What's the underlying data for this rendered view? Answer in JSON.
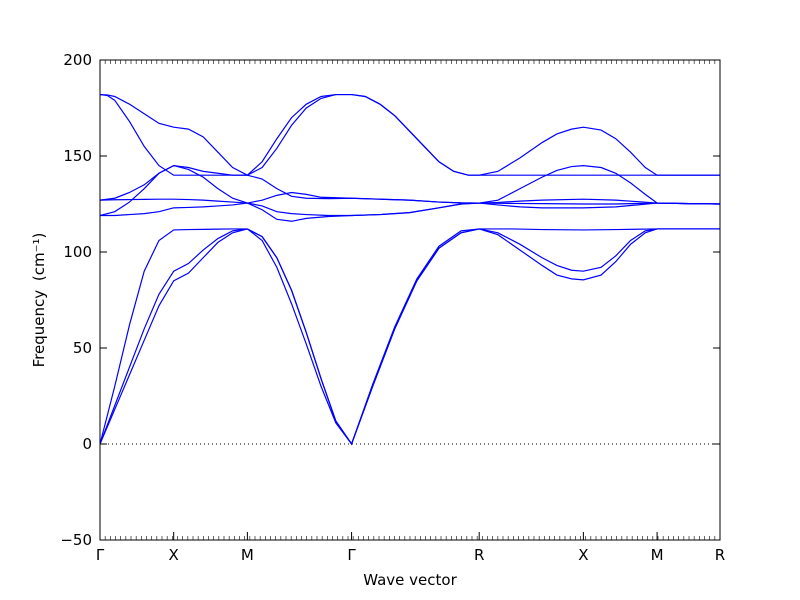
{
  "chart_data": {
    "type": "line",
    "xlabel": "Wave vector",
    "ylabel": "Frequency",
    "ylabel_unit": "(cm⁻¹)",
    "ylim": [
      -50,
      200
    ],
    "y_ticks": [
      -50,
      0,
      50,
      100,
      150,
      200
    ],
    "y_tick_labels": [
      "−50",
      "0",
      "50",
      "100",
      "150",
      "200"
    ],
    "grid": false,
    "zero_reference_line": "dotted",
    "line_color": "#0000ff",
    "path_points": [
      {
        "label": "Γ",
        "x": 0.0
      },
      {
        "label": "X",
        "x": 0.5
      },
      {
        "label": "M",
        "x": 1.0
      },
      {
        "label": "Γ",
        "x": 1.707
      },
      {
        "label": "R",
        "x": 2.573
      },
      {
        "label": "X",
        "x": 3.28
      },
      {
        "label": "M",
        "x": 3.78
      },
      {
        "label": "R",
        "x": 4.207
      }
    ],
    "series": [
      {
        "values": [
          [
            0.0,
            0
          ],
          [
            0.1,
            18
          ],
          [
            0.2,
            36
          ],
          [
            0.3,
            54
          ],
          [
            0.4,
            72
          ],
          [
            0.5,
            85
          ],
          [
            0.6,
            89
          ],
          [
            0.7,
            97
          ],
          [
            0.8,
            105
          ],
          [
            0.9,
            110
          ],
          [
            1.0,
            112
          ],
          [
            1.1,
            108
          ],
          [
            1.2,
            97
          ],
          [
            1.3,
            80
          ],
          [
            1.4,
            58
          ],
          [
            1.5,
            34
          ],
          [
            1.6,
            12
          ],
          [
            1.707,
            0
          ],
          [
            1.85,
            30
          ],
          [
            2.0,
            60
          ],
          [
            2.15,
            85
          ],
          [
            2.3,
            102
          ],
          [
            2.45,
            110
          ],
          [
            2.573,
            112
          ],
          [
            2.7,
            109
          ],
          [
            2.85,
            101
          ],
          [
            3.0,
            93
          ],
          [
            3.1,
            88
          ],
          [
            3.2,
            86
          ],
          [
            3.28,
            85.5
          ],
          [
            3.4,
            88
          ],
          [
            3.5,
            95
          ],
          [
            3.6,
            104
          ],
          [
            3.7,
            110
          ],
          [
            3.78,
            112
          ],
          [
            4.0,
            112
          ],
          [
            4.207,
            112
          ]
        ]
      },
      {
        "values": [
          [
            0.0,
            0
          ],
          [
            0.1,
            20
          ],
          [
            0.2,
            40
          ],
          [
            0.3,
            60
          ],
          [
            0.4,
            78
          ],
          [
            0.5,
            90
          ],
          [
            0.6,
            94
          ],
          [
            0.7,
            101
          ],
          [
            0.8,
            107
          ],
          [
            0.9,
            111
          ],
          [
            1.0,
            112
          ],
          [
            1.1,
            106
          ],
          [
            1.2,
            92
          ],
          [
            1.3,
            73
          ],
          [
            1.4,
            52
          ],
          [
            1.5,
            30
          ],
          [
            1.6,
            11
          ],
          [
            1.707,
            0
          ],
          [
            1.85,
            31
          ],
          [
            2.0,
            61
          ],
          [
            2.15,
            86
          ],
          [
            2.3,
            103
          ],
          [
            2.45,
            111
          ],
          [
            2.573,
            112
          ],
          [
            2.7,
            110
          ],
          [
            2.85,
            104
          ],
          [
            3.0,
            97
          ],
          [
            3.1,
            93
          ],
          [
            3.2,
            90.5
          ],
          [
            3.28,
            90
          ],
          [
            3.4,
            92
          ],
          [
            3.5,
            98
          ],
          [
            3.6,
            106
          ],
          [
            3.7,
            111
          ],
          [
            3.78,
            112
          ],
          [
            4.0,
            112
          ],
          [
            4.207,
            112
          ]
        ]
      },
      {
        "values": [
          [
            0.0,
            0
          ],
          [
            0.1,
            30
          ],
          [
            0.2,
            62
          ],
          [
            0.3,
            90
          ],
          [
            0.4,
            106
          ],
          [
            0.5,
            111.5
          ],
          [
            0.6,
            111.7
          ],
          [
            0.7,
            111.8
          ],
          [
            0.8,
            111.9
          ],
          [
            0.9,
            112
          ],
          [
            1.0,
            112
          ],
          [
            1.1,
            108
          ],
          [
            1.2,
            97
          ],
          [
            1.3,
            80
          ],
          [
            1.4,
            58
          ],
          [
            1.5,
            34
          ],
          [
            1.6,
            12
          ],
          [
            1.707,
            0
          ],
          [
            1.85,
            30
          ],
          [
            2.0,
            60
          ],
          [
            2.15,
            85
          ],
          [
            2.3,
            102
          ],
          [
            2.45,
            110
          ],
          [
            2.573,
            112
          ],
          [
            2.8,
            112
          ],
          [
            3.0,
            111.7
          ],
          [
            3.28,
            111.5
          ],
          [
            3.5,
            111.7
          ],
          [
            3.78,
            112
          ],
          [
            4.0,
            112
          ],
          [
            4.207,
            112
          ]
        ]
      },
      {
        "values": [
          [
            0.0,
            119
          ],
          [
            0.1,
            119
          ],
          [
            0.2,
            119.5
          ],
          [
            0.3,
            120
          ],
          [
            0.4,
            121
          ],
          [
            0.5,
            123
          ],
          [
            0.6,
            123.2
          ],
          [
            0.7,
            123.5
          ],
          [
            0.8,
            124
          ],
          [
            0.9,
            124.5
          ],
          [
            1.0,
            125.5
          ],
          [
            1.1,
            124
          ],
          [
            1.2,
            121
          ],
          [
            1.3,
            120
          ],
          [
            1.4,
            119.5
          ],
          [
            1.55,
            119
          ],
          [
            1.707,
            119
          ],
          [
            1.9,
            119.5
          ],
          [
            2.1,
            120.5
          ],
          [
            2.3,
            123
          ],
          [
            2.45,
            125
          ],
          [
            2.573,
            125.5
          ],
          [
            2.8,
            125.3
          ],
          [
            3.0,
            125.2
          ],
          [
            3.28,
            125
          ],
          [
            3.5,
            125
          ],
          [
            3.78,
            125.5
          ],
          [
            4.0,
            125.2
          ],
          [
            4.207,
            125
          ]
        ]
      },
      {
        "values": [
          [
            0.0,
            119
          ],
          [
            0.1,
            121
          ],
          [
            0.2,
            126
          ],
          [
            0.3,
            133
          ],
          [
            0.4,
            141
          ],
          [
            0.5,
            145
          ],
          [
            0.6,
            143
          ],
          [
            0.7,
            139
          ],
          [
            0.8,
            133
          ],
          [
            0.9,
            128
          ],
          [
            1.0,
            125.5
          ],
          [
            1.1,
            122
          ],
          [
            1.2,
            117
          ],
          [
            1.3,
            116
          ],
          [
            1.4,
            117.5
          ],
          [
            1.55,
            118.5
          ],
          [
            1.707,
            119
          ],
          [
            1.9,
            119.5
          ],
          [
            2.1,
            120.5
          ],
          [
            2.3,
            123
          ],
          [
            2.45,
            125
          ],
          [
            2.573,
            125.5
          ],
          [
            2.7,
            125.8
          ],
          [
            2.85,
            126.5
          ],
          [
            3.0,
            127
          ],
          [
            3.28,
            127.5
          ],
          [
            3.5,
            127
          ],
          [
            3.78,
            125.5
          ],
          [
            4.0,
            125.2
          ],
          [
            4.207,
            125
          ]
        ]
      },
      {
        "values": [
          [
            0.0,
            127
          ],
          [
            0.1,
            127.2
          ],
          [
            0.2,
            127.3
          ],
          [
            0.3,
            127.4
          ],
          [
            0.4,
            127.5
          ],
          [
            0.5,
            127.5
          ],
          [
            0.6,
            127.3
          ],
          [
            0.7,
            127
          ],
          [
            0.8,
            126.5
          ],
          [
            0.9,
            126
          ],
          [
            1.0,
            125.5
          ],
          [
            1.1,
            127
          ],
          [
            1.2,
            129.5
          ],
          [
            1.3,
            131
          ],
          [
            1.4,
            130
          ],
          [
            1.5,
            128.5
          ],
          [
            1.707,
            128
          ],
          [
            1.9,
            127.5
          ],
          [
            2.1,
            127
          ],
          [
            2.3,
            126
          ],
          [
            2.45,
            125.6
          ],
          [
            2.573,
            125.5
          ],
          [
            2.7,
            124.5
          ],
          [
            2.85,
            123.5
          ],
          [
            3.0,
            123
          ],
          [
            3.28,
            123
          ],
          [
            3.5,
            123.5
          ],
          [
            3.78,
            125.5
          ],
          [
            4.0,
            125.2
          ],
          [
            4.207,
            125
          ]
        ]
      },
      {
        "values": [
          [
            0.0,
            127
          ],
          [
            0.1,
            128
          ],
          [
            0.2,
            131
          ],
          [
            0.3,
            135
          ],
          [
            0.4,
            141
          ],
          [
            0.5,
            145
          ],
          [
            0.6,
            144
          ],
          [
            0.7,
            142
          ],
          [
            0.8,
            141
          ],
          [
            0.9,
            140
          ],
          [
            1.0,
            140
          ],
          [
            1.1,
            138
          ],
          [
            1.2,
            133
          ],
          [
            1.3,
            129
          ],
          [
            1.4,
            128
          ],
          [
            1.55,
            127.8
          ],
          [
            1.707,
            128
          ],
          [
            1.9,
            127.5
          ],
          [
            2.1,
            127
          ],
          [
            2.3,
            126
          ],
          [
            2.45,
            125.6
          ],
          [
            2.573,
            125.5
          ],
          [
            2.7,
            127
          ],
          [
            2.85,
            133
          ],
          [
            3.0,
            139
          ],
          [
            3.1,
            142.5
          ],
          [
            3.2,
            144.5
          ],
          [
            3.28,
            145
          ],
          [
            3.4,
            144
          ],
          [
            3.5,
            141
          ],
          [
            3.6,
            136
          ],
          [
            3.7,
            130
          ],
          [
            3.78,
            125.5
          ],
          [
            4.0,
            125.2
          ],
          [
            4.207,
            125
          ]
        ]
      },
      {
        "values": [
          [
            0.0,
            182
          ],
          [
            0.05,
            181.5
          ],
          [
            0.1,
            179
          ],
          [
            0.2,
            168
          ],
          [
            0.3,
            155
          ],
          [
            0.4,
            145
          ],
          [
            0.5,
            140
          ],
          [
            0.6,
            140
          ],
          [
            0.7,
            140
          ],
          [
            0.8,
            140
          ],
          [
            0.9,
            140
          ],
          [
            1.0,
            140
          ],
          [
            1.1,
            147
          ],
          [
            1.2,
            159
          ],
          [
            1.3,
            170
          ],
          [
            1.4,
            177
          ],
          [
            1.5,
            181
          ],
          [
            1.6,
            182
          ],
          [
            1.707,
            182
          ],
          [
            1.8,
            181
          ],
          [
            1.9,
            177
          ],
          [
            2.0,
            171
          ],
          [
            2.1,
            163
          ],
          [
            2.2,
            155
          ],
          [
            2.3,
            147
          ],
          [
            2.4,
            142
          ],
          [
            2.5,
            140
          ],
          [
            2.573,
            140
          ],
          [
            2.8,
            140
          ],
          [
            3.0,
            140
          ],
          [
            3.28,
            140
          ],
          [
            3.5,
            140
          ],
          [
            3.78,
            140
          ],
          [
            4.0,
            140
          ],
          [
            4.207,
            140
          ]
        ]
      },
      {
        "values": [
          [
            0.0,
            182
          ],
          [
            0.05,
            181.8
          ],
          [
            0.1,
            181
          ],
          [
            0.2,
            177
          ],
          [
            0.3,
            172
          ],
          [
            0.4,
            167
          ],
          [
            0.5,
            165
          ],
          [
            0.6,
            164
          ],
          [
            0.7,
            160
          ],
          [
            0.8,
            152
          ],
          [
            0.9,
            144
          ],
          [
            1.0,
            140
          ],
          [
            1.1,
            144
          ],
          [
            1.2,
            154
          ],
          [
            1.3,
            166
          ],
          [
            1.4,
            175
          ],
          [
            1.5,
            180
          ],
          [
            1.6,
            182
          ],
          [
            1.707,
            182
          ],
          [
            1.8,
            181
          ],
          [
            1.9,
            177
          ],
          [
            2.0,
            171
          ],
          [
            2.1,
            163
          ],
          [
            2.2,
            155
          ],
          [
            2.3,
            147
          ],
          [
            2.4,
            142
          ],
          [
            2.5,
            140
          ],
          [
            2.573,
            140
          ],
          [
            2.7,
            142
          ],
          [
            2.85,
            149
          ],
          [
            3.0,
            157
          ],
          [
            3.1,
            161.5
          ],
          [
            3.2,
            164
          ],
          [
            3.28,
            165
          ],
          [
            3.4,
            163.5
          ],
          [
            3.5,
            159
          ],
          [
            3.6,
            152
          ],
          [
            3.7,
            144
          ],
          [
            3.78,
            140
          ],
          [
            4.0,
            140
          ],
          [
            4.207,
            140
          ]
        ]
      }
    ]
  }
}
